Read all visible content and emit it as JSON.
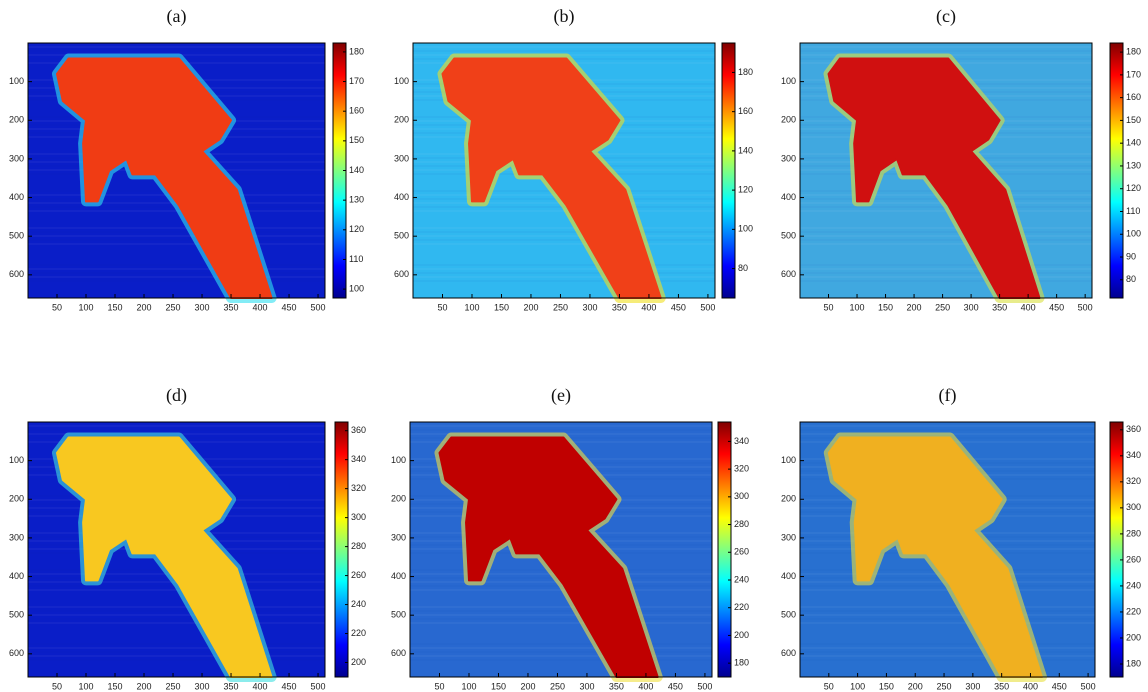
{
  "chart_data": [
    {
      "type": "heatmap",
      "title": "(a)",
      "xlim": [
        0,
        512
      ],
      "xticks": [
        50,
        100,
        150,
        200,
        250,
        300,
        350,
        400,
        450,
        500
      ],
      "ylim": [
        0,
        660
      ],
      "y_reversed": true,
      "yticks": [
        100,
        200,
        300,
        400,
        500,
        600
      ],
      "clim": [
        97,
        183
      ],
      "cticks": [
        100,
        110,
        120,
        130,
        140,
        150,
        160,
        170,
        180
      ],
      "colormap": "jet"
    },
    {
      "type": "heatmap",
      "title": "(b)",
      "xlim": [
        0,
        512
      ],
      "xticks": [
        50,
        100,
        150,
        200,
        250,
        300,
        350,
        400,
        450,
        500
      ],
      "ylim": [
        0,
        660
      ],
      "y_reversed": true,
      "yticks": [
        100,
        200,
        300,
        400,
        500,
        600
      ],
      "clim": [
        65,
        195
      ],
      "cticks": [
        80,
        100,
        120,
        140,
        160,
        180
      ],
      "colormap": "jet"
    },
    {
      "type": "heatmap",
      "title": "(c)",
      "xlim": [
        0,
        512
      ],
      "xticks": [
        50,
        100,
        150,
        200,
        250,
        300,
        350,
        400,
        450,
        500
      ],
      "ylim": [
        0,
        660
      ],
      "y_reversed": true,
      "yticks": [
        100,
        200,
        300,
        400,
        500,
        600
      ],
      "clim": [
        72,
        184
      ],
      "cticks": [
        80,
        90,
        100,
        110,
        120,
        130,
        140,
        150,
        160,
        170,
        180
      ],
      "colormap": "jet"
    },
    {
      "type": "heatmap",
      "title": "(d)",
      "xlim": [
        0,
        512
      ],
      "xticks": [
        50,
        100,
        150,
        200,
        250,
        300,
        350,
        400,
        450,
        500
      ],
      "ylim": [
        0,
        660
      ],
      "y_reversed": true,
      "yticks": [
        100,
        200,
        300,
        400,
        500,
        600
      ],
      "clim": [
        190,
        366
      ],
      "cticks": [
        200,
        220,
        240,
        260,
        280,
        300,
        320,
        340,
        360
      ],
      "colormap": "jet"
    },
    {
      "type": "heatmap",
      "title": "(e)",
      "xlim": [
        0,
        512
      ],
      "xticks": [
        50,
        100,
        150,
        200,
        250,
        300,
        350,
        400,
        450,
        500
      ],
      "ylim": [
        0,
        660
      ],
      "y_reversed": true,
      "yticks": [
        100,
        200,
        300,
        400,
        500,
        600
      ],
      "clim": [
        170,
        354
      ],
      "cticks": [
        180,
        200,
        220,
        240,
        260,
        280,
        300,
        320,
        340
      ],
      "colormap": "jet"
    },
    {
      "type": "heatmap",
      "title": "(f)",
      "xlim": [
        0,
        512
      ],
      "xticks": [
        50,
        100,
        150,
        200,
        250,
        300,
        350,
        400,
        450,
        500
      ],
      "ylim": [
        0,
        660
      ],
      "y_reversed": true,
      "yticks": [
        100,
        200,
        300,
        400,
        500,
        600
      ],
      "clim": [
        170,
        366
      ],
      "cticks": [
        180,
        200,
        220,
        240,
        260,
        280,
        300,
        320,
        340,
        360
      ],
      "colormap": "jet"
    }
  ]
}
